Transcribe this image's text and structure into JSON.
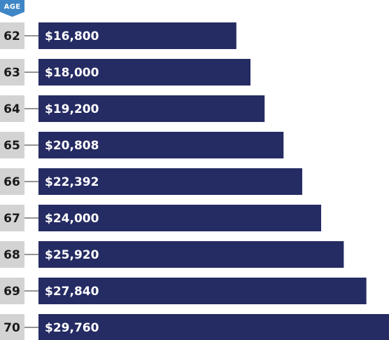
{
  "chart_data": {
    "type": "bar",
    "orientation": "horizontal",
    "header_label": "AGE",
    "categories": [
      "62",
      "63",
      "64",
      "65",
      "66",
      "67",
      "68",
      "69",
      "70"
    ],
    "values": [
      16800,
      18000,
      19200,
      20808,
      22392,
      24000,
      25920,
      27840,
      29760
    ],
    "value_labels": [
      "$16,800",
      "$18,000",
      "$19,200",
      "$20,808",
      "$22,392",
      "$24,000",
      "$25,920",
      "$27,840",
      "$29,760"
    ],
    "title": "",
    "xlabel": "",
    "ylabel": "",
    "xlim": [
      0,
      29760
    ],
    "grid": false,
    "legend": "none"
  },
  "colors": {
    "bar": "#252b63",
    "header_badge": "#3f86c6",
    "age_box": "#d3d3d3",
    "connector": "#555555",
    "age_text": "#1a1a1a",
    "value_text": "#ffffff"
  }
}
